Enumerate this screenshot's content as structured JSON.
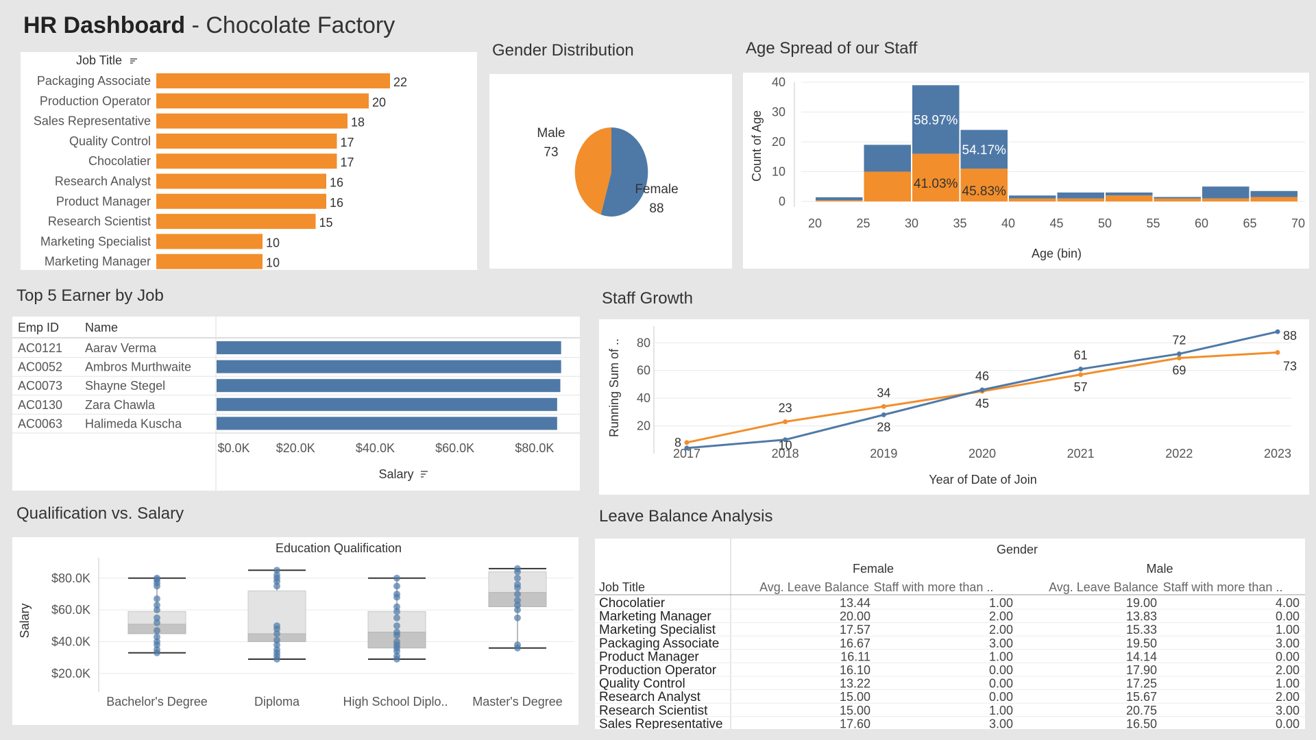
{
  "header": {
    "title_bold": "HR Dashboard",
    "title_rest": " - Chocolate Factory"
  },
  "colors": {
    "orange": "#f28e2b",
    "blue": "#4e79a7",
    "grid": "#e9e9e9",
    "axis": "#c8c8c8",
    "text": "#555555"
  },
  "panels": {
    "gender_title": "Gender Distribution",
    "age_title": "Age Spread of our Staff",
    "top5_title": "Top 5 Earner  by Job",
    "growth_title": "Staff Growth",
    "qual_title": "Qualification vs. Salary",
    "leave_title": "Leave Balance Analysis"
  },
  "chart_data": [
    {
      "id": "job_title",
      "type": "bar",
      "orientation": "horizontal",
      "header": "Job Title",
      "sort_icon": "sort-icon",
      "categories": [
        "Packaging Associate",
        "Production Operator",
        "Sales Representative",
        "Quality Control",
        "Chocolatier",
        "Research Analyst",
        "Product Manager",
        "Research Scientist",
        "Marketing Specialist",
        "Marketing Manager"
      ],
      "values": [
        22,
        20,
        18,
        17,
        17,
        16,
        16,
        15,
        10,
        10
      ]
    },
    {
      "id": "gender",
      "type": "pie",
      "title": "Gender Distribution",
      "slices": [
        {
          "label": "Female",
          "value": 88
        },
        {
          "label": "Male",
          "value": 73
        }
      ]
    },
    {
      "id": "age",
      "type": "bar",
      "stacked": true,
      "title": "Age Spread of our Staff",
      "xlabel": "Age (bin)",
      "ylabel": "Count of Age",
      "xticks": [
        20,
        25,
        30,
        35,
        40,
        45,
        50,
        55,
        60,
        65,
        70
      ],
      "yticks": [
        0,
        10,
        20,
        30,
        40
      ],
      "ylim": [
        0,
        40
      ],
      "bins": [
        {
          "x0": 20,
          "female": 0.4,
          "male": 1.0
        },
        {
          "x0": 25,
          "female": 10,
          "male": 9
        },
        {
          "x0": 30,
          "female": 16,
          "male": 23,
          "female_label": "41.03%",
          "male_label": "58.97%"
        },
        {
          "x0": 35,
          "female": 11,
          "male": 13,
          "female_label": "45.83%",
          "male_label": "54.17%"
        },
        {
          "x0": 40,
          "female": 1,
          "male": 1
        },
        {
          "x0": 45,
          "female": 1,
          "male": 2
        },
        {
          "x0": 50,
          "female": 2,
          "male": 1
        },
        {
          "x0": 55,
          "female": 1,
          "male": 0.5
        },
        {
          "x0": 60,
          "female": 1,
          "male": 4
        },
        {
          "x0": 65,
          "female": 1.5,
          "male": 2
        }
      ]
    },
    {
      "id": "top5",
      "type": "bar",
      "orientation": "horizontal",
      "title": "Top 5 Earner  by Job",
      "columns": [
        "Emp ID",
        "Name"
      ],
      "xlabel": "Salary",
      "xticks": [
        0,
        20000,
        40000,
        60000,
        80000
      ],
      "xtick_labels": [
        "$0.0K",
        "$20.0K",
        "$40.0K",
        "$60.0K",
        "$80.0K"
      ],
      "xlim": [
        0,
        90000
      ],
      "rows": [
        {
          "id": "AC0121",
          "name": "Aarav Verma",
          "value": 86500
        },
        {
          "id": "AC0052",
          "name": "Ambros Murthwaite",
          "value": 86500
        },
        {
          "id": "AC0073",
          "name": "Shayne Stegel",
          "value": 86300
        },
        {
          "id": "AC0130",
          "name": "Zara Chawla",
          "value": 85500
        },
        {
          "id": "AC0063",
          "name": "Halimeda Kuscha",
          "value": 85500
        }
      ]
    },
    {
      "id": "growth",
      "type": "line",
      "title": "Staff Growth",
      "xlabel": "Year of Date of Join",
      "ylabel": "Running Sum of ..",
      "x": [
        2017,
        2018,
        2019,
        2020,
        2021,
        2022,
        2023
      ],
      "yticks": [
        20,
        40,
        60,
        80
      ],
      "ylim": [
        0,
        92
      ],
      "series": [
        {
          "name": "Male",
          "color": "orange",
          "values": [
            8,
            23,
            34,
            45,
            57,
            69,
            73
          ]
        },
        {
          "name": "Female",
          "color": "blue",
          "values": [
            4,
            10,
            28,
            46,
            61,
            72,
            88
          ]
        }
      ]
    },
    {
      "id": "qualification",
      "type": "boxplot",
      "title": "Qualification vs. Salary",
      "column_header": "Education Qualification",
      "ylabel": "Salary",
      "categories": [
        "Bachelor's Degree",
        "Diploma",
        "High School Diplo..",
        "Master's Degree"
      ],
      "yticks": [
        20000,
        40000,
        60000,
        80000
      ],
      "ytick_labels": [
        "$20.0K",
        "$40.0K",
        "$60.0K",
        "$80.0K"
      ],
      "ylim": [
        10000,
        92000
      ],
      "boxes": [
        {
          "min": 33000,
          "q1": 45000,
          "median": 51000,
          "q3": 59000,
          "max": 80000
        },
        {
          "min": 29000,
          "q1": 40000,
          "median": 45000,
          "q3": 72000,
          "max": 85000
        },
        {
          "min": 29000,
          "q1": 36000,
          "median": 46000,
          "q3": 59000,
          "max": 80000
        },
        {
          "min": 36000,
          "q1": 62000,
          "median": 71000,
          "q3": 84000,
          "max": 86000
        }
      ],
      "points": [
        [
          33000,
          35000,
          38000,
          40000,
          43000,
          47000,
          52000,
          55000,
          60000,
          63000,
          67000,
          75000,
          77000,
          79000,
          80000
        ],
        [
          29000,
          31000,
          33000,
          35000,
          38000,
          41000,
          45000,
          48000,
          50000,
          75000,
          78000,
          80000,
          82000,
          85000
        ],
        [
          29000,
          31000,
          34000,
          36000,
          38000,
          40000,
          44000,
          46000,
          50000,
          55000,
          59000,
          62000,
          68000,
          70000,
          75000,
          80000
        ],
        [
          36000,
          38000,
          55000,
          60000,
          63000,
          66000,
          70000,
          74000,
          76000,
          80000,
          84000,
          86000
        ]
      ]
    }
  ],
  "leave": {
    "gender_label": "Gender",
    "groups": [
      "Female",
      "Male"
    ],
    "row_header": "Job Title",
    "columns": [
      "Avg. Leave Balance",
      "Staff with more than .."
    ],
    "rows": [
      {
        "job": "Chocolatier",
        "f_avg": "13.44",
        "f_more": "1.00",
        "m_avg": "19.00",
        "m_more": "4.00"
      },
      {
        "job": "Marketing Manager",
        "f_avg": "20.00",
        "f_more": "2.00",
        "m_avg": "13.83",
        "m_more": "0.00"
      },
      {
        "job": "Marketing Specialist",
        "f_avg": "17.57",
        "f_more": "2.00",
        "m_avg": "15.33",
        "m_more": "1.00"
      },
      {
        "job": "Packaging Associate",
        "f_avg": "16.67",
        "f_more": "3.00",
        "m_avg": "19.50",
        "m_more": "3.00"
      },
      {
        "job": "Product Manager",
        "f_avg": "16.11",
        "f_more": "1.00",
        "m_avg": "14.14",
        "m_more": "0.00"
      },
      {
        "job": "Production Operator",
        "f_avg": "16.10",
        "f_more": "0.00",
        "m_avg": "17.90",
        "m_more": "2.00"
      },
      {
        "job": "Quality Control",
        "f_avg": "13.22",
        "f_more": "0.00",
        "m_avg": "17.25",
        "m_more": "1.00"
      },
      {
        "job": "Research Analyst",
        "f_avg": "15.00",
        "f_more": "0.00",
        "m_avg": "15.67",
        "m_more": "2.00"
      },
      {
        "job": "Research Scientist",
        "f_avg": "15.00",
        "f_more": "1.00",
        "m_avg": "20.75",
        "m_more": "3.00"
      },
      {
        "job": "Sales Representative",
        "f_avg": "17.60",
        "f_more": "3.00",
        "m_avg": "16.50",
        "m_more": "0.00"
      }
    ]
  }
}
